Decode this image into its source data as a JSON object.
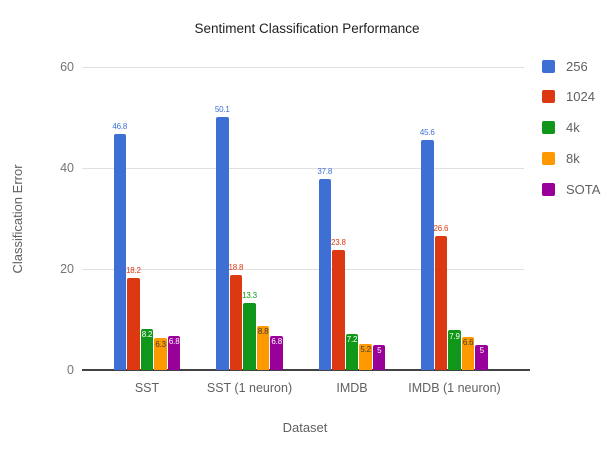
{
  "chart_data": {
    "type": "bar",
    "title": "Sentiment Classification Performance",
    "xlabel": "Dataset",
    "ylabel": "Classification Error",
    "ylim": [
      0,
      60
    ],
    "yticks": [
      0,
      20,
      40,
      60
    ],
    "grid": true,
    "legend_position": "right",
    "categories": [
      "SST",
      "SST (1 neuron)",
      "IMDB",
      "IMDB (1 neuron)"
    ],
    "series": [
      {
        "name": "256",
        "color": "#3d6fd5",
        "inside_label_color": "#ffffff",
        "values": [
          46.8,
          50.1,
          37.8,
          45.6
        ],
        "labels": [
          "46.8",
          "50.1",
          "37.8",
          "45.6"
        ]
      },
      {
        "name": "1024",
        "color": "#dc3912",
        "inside_label_color": "#ffffff",
        "values": [
          18.2,
          18.8,
          23.8,
          26.6
        ],
        "labels": [
          "18.2",
          "18.8",
          "23.8",
          "26.6"
        ]
      },
      {
        "name": "4k",
        "color": "#109618",
        "inside_label_color": "#ffffff",
        "values": [
          8.2,
          13.3,
          7.2,
          7.9
        ],
        "labels": [
          "8.2",
          "13.3",
          "7.2",
          "7.9"
        ]
      },
      {
        "name": "8k",
        "color": "#ff9900",
        "inside_label_color": "#3d3d3d",
        "values": [
          6.3,
          8.8,
          5.2,
          6.6
        ],
        "labels": [
          "6.3",
          "8.8",
          "5.2",
          "6.6"
        ]
      },
      {
        "name": "SOTA",
        "color": "#990099",
        "inside_label_color": "#ffffff",
        "values": [
          6.8,
          6.8,
          5,
          5
        ],
        "labels": [
          "6.8",
          "6.8",
          "5",
          "5"
        ]
      }
    ]
  }
}
